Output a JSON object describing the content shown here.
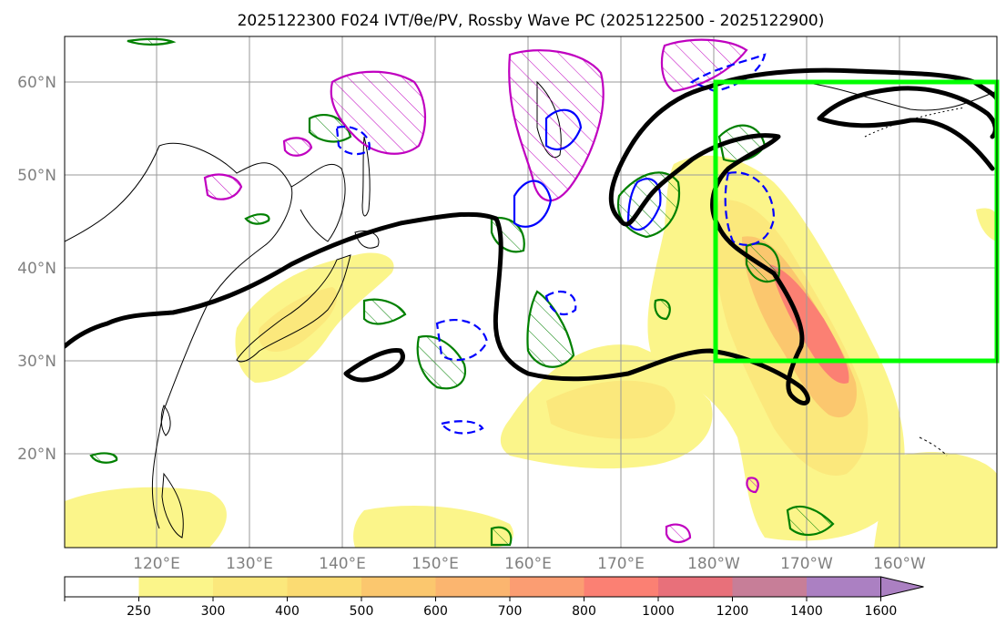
{
  "title": "2025122300 F024 IVT/θe/PV, Rossby Wave PC (2025122500 - 2025122900)",
  "lat_labels": [
    "20°N",
    "30°N",
    "40°N",
    "50°N",
    "60°N"
  ],
  "lon_labels": [
    "120°E",
    "130°E",
    "140°E",
    "150°E",
    "160°E",
    "170°E",
    "180°W",
    "170°W",
    "160°W"
  ],
  "colorbar": {
    "levels": [
      "250",
      "300",
      "400",
      "500",
      "600",
      "700",
      "800",
      "1000",
      "1200",
      "1400",
      "1600"
    ],
    "colors": [
      "#ffffff",
      "#fbf58a",
      "#fbe87c",
      "#fbdb72",
      "#fbc76e",
      "#fbb56f",
      "#fb9d72",
      "#fb8073",
      "#e8707a",
      "#c77e98",
      "#ab80c2"
    ]
  },
  "colors": {
    "theta_e_contour": "#008000",
    "pv_contour": "#0000ff",
    "pc_contour": "#c000c0",
    "wave_contour": "#000000",
    "box": "#00ff00"
  }
}
